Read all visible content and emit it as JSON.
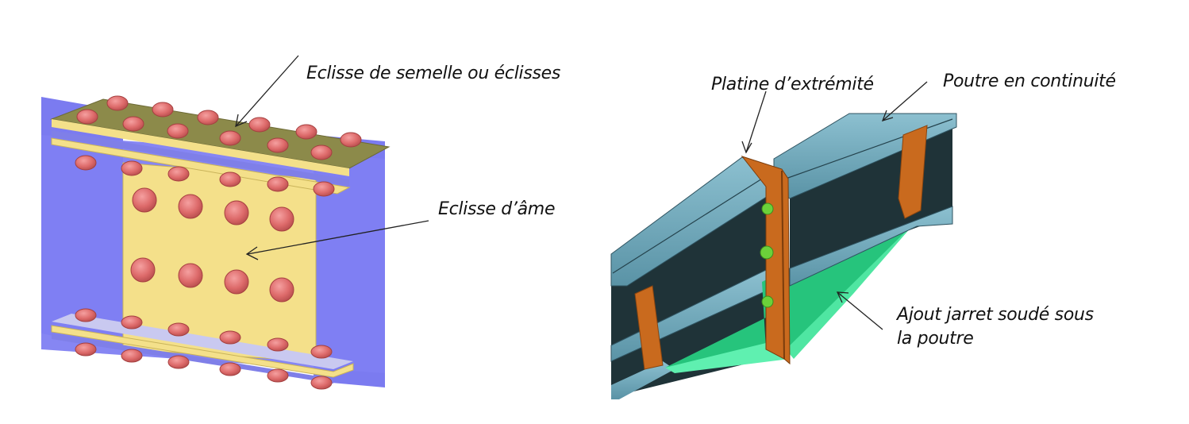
{
  "figures": [
    {
      "id": "bolted-splice",
      "labels": {
        "flange_plates": "Eclisse de semelle ou éclisses",
        "web_plate": "Eclisse d’âme"
      }
    },
    {
      "id": "end-plate-haunch",
      "labels": {
        "end_plate": "Platine d’extrémité",
        "continuous_beam": "Poutre en continuité",
        "haunch_line1": "Ajout jarret soudé sous",
        "haunch_line2": "la poutre"
      }
    }
  ],
  "colors": {
    "beam_blue": "#7b7bf0",
    "plate_yellow": "#f4e08a",
    "bolt_red": "#e07070",
    "flange_olive": "#8c8a4a",
    "steel_teal": "#6aa4b8",
    "web_dark": "#1f3338",
    "haunch_green": "#2fd38a",
    "endplate_orange": "#c96a1e"
  }
}
